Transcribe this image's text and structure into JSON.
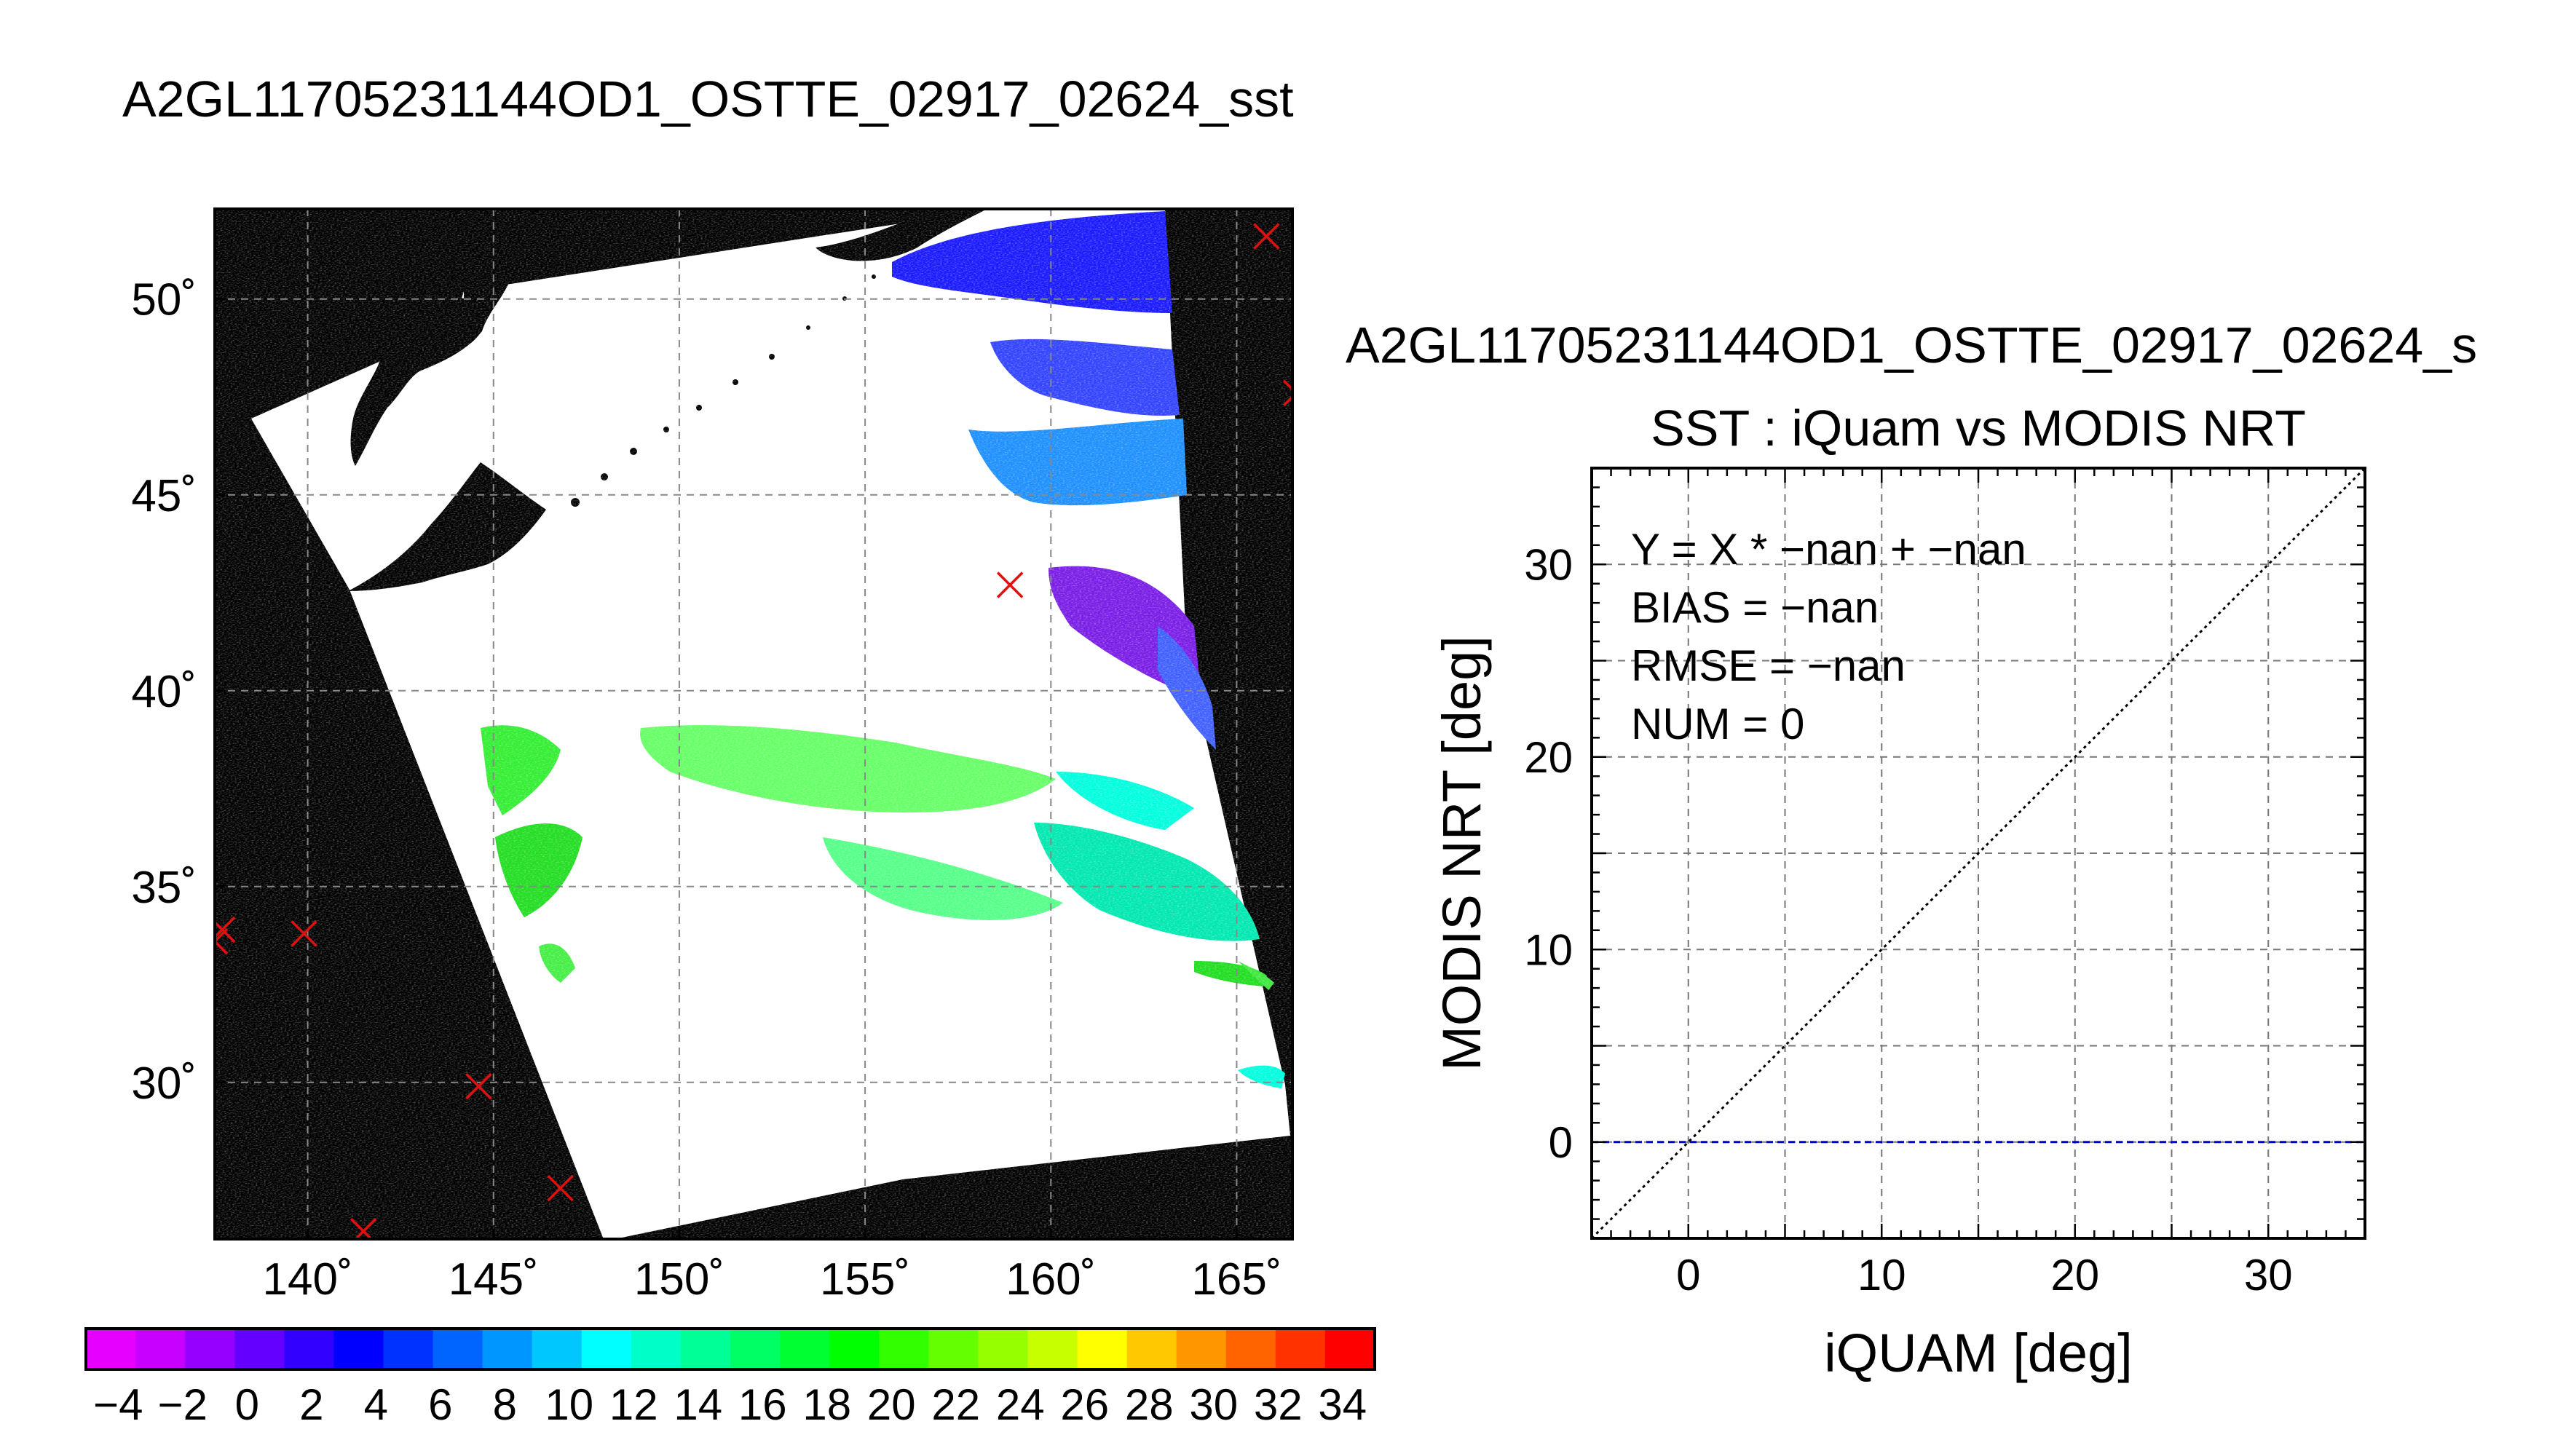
{
  "page_title": "A2GL11705231144OD1_OSTTE_02917_02624_sst",
  "map": {
    "lon_ticks": [
      "140˚",
      "145˚",
      "150˚",
      "155˚",
      "160˚",
      "165˚"
    ],
    "lat_ticks": [
      "50˚",
      "45˚",
      "40˚",
      "35˚",
      "30˚"
    ],
    "lon_range": [
      137.5,
      166.5
    ],
    "lat_range": [
      26,
      52.3
    ],
    "markers": [
      {
        "lon": 165.8,
        "lat": 51.6
      },
      {
        "lon": 166.6,
        "lat": 47.6
      },
      {
        "lon": 158.9,
        "lat": 42.7
      },
      {
        "lon": 137.7,
        "lat": 33.9
      },
      {
        "lon": 137.5,
        "lat": 33.6
      },
      {
        "lon": 139.9,
        "lat": 33.8
      },
      {
        "lon": 144.6,
        "lat": 29.9
      },
      {
        "lon": 146.8,
        "lat": 27.3
      },
      {
        "lon": 141.5,
        "lat": 26.2
      }
    ],
    "colors": {
      "background": "#000000",
      "swath": "#ffffff",
      "marker": "#e01010",
      "grid": "#888888"
    }
  },
  "colorbar": {
    "tick_labels": [
      "−4",
      "−2",
      "0",
      "2",
      "4",
      "6",
      "8",
      "10",
      "12",
      "14",
      "16",
      "18",
      "20",
      "22",
      "24",
      "26",
      "28",
      "30",
      "32",
      "34"
    ],
    "min": -5,
    "max": 35,
    "colors": [
      "#e600ff",
      "#c800ff",
      "#9600ff",
      "#6400ff",
      "#3200ff",
      "#0000ff",
      "#0032ff",
      "#0064ff",
      "#0096ff",
      "#00c8ff",
      "#00ffff",
      "#00ffc8",
      "#00ff96",
      "#00ff64",
      "#00ff32",
      "#00ff00",
      "#32ff00",
      "#64ff00",
      "#96ff00",
      "#c8ff00",
      "#ffff00",
      "#ffc800",
      "#ff9600",
      "#ff6400",
      "#ff3200",
      "#ff0000"
    ]
  },
  "chart_data": {
    "type": "scatter",
    "heading": "A2GL11705231144OD1_OSTTE_02917_02624_s",
    "title": "SST : iQuam vs MODIS NRT",
    "xlabel": "iQUAM [deg]",
    "ylabel": "MODIS NRT [deg]",
    "xlim": [
      -5,
      35
    ],
    "ylim": [
      -5,
      35
    ],
    "xticks": [
      0,
      10,
      20,
      30
    ],
    "yticks": [
      0,
      10,
      20,
      30
    ],
    "grid": true,
    "stats": [
      "Y = X * −nan + −nan",
      "BIAS = −nan",
      "RMSE = −nan",
      "NUM = 0"
    ],
    "series": [],
    "reference_lines": [
      {
        "style": "dotted",
        "color": "#000000",
        "points": [
          [
            -5,
            -5
          ],
          [
            35,
            35
          ]
        ]
      },
      {
        "style": "dashed",
        "color": "#0000cc",
        "points": [
          [
            -5,
            0
          ],
          [
            35,
            0
          ]
        ]
      }
    ]
  }
}
